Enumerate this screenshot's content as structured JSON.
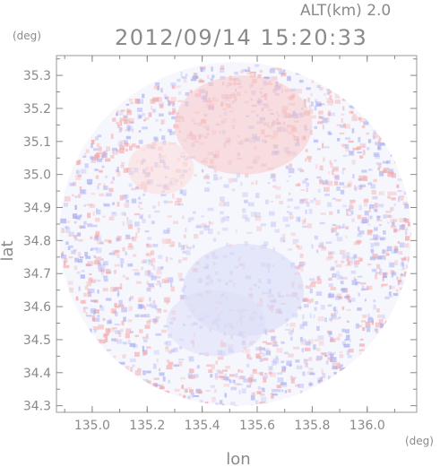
{
  "header": {
    "altitude": "ALT(km) 2.0",
    "timestamp": "2012/09/14 15:20:33"
  },
  "chart_data": {
    "type": "heatmap",
    "title": "2012/09/14 15:20:33",
    "xlabel": "lon",
    "ylabel": "lat",
    "x_unit": "(deg)",
    "y_unit": "(deg)",
    "xlim": [
      134.87,
      136.18
    ],
    "ylim": [
      34.28,
      35.36
    ],
    "x_ticks": [
      135.0,
      135.2,
      135.4,
      135.6,
      135.8,
      136.0
    ],
    "y_ticks": [
      34.3,
      34.4,
      34.5,
      34.6,
      34.7,
      34.8,
      34.9,
      35.0,
      35.1,
      35.2,
      35.3
    ],
    "x_tick_labels": [
      "135.0",
      "135.2",
      "135.4",
      "135.6",
      "135.8",
      "136.0"
    ],
    "y_tick_labels": [
      "34.3",
      "34.4",
      "34.5",
      "34.6",
      "34.7",
      "34.8",
      "34.9",
      "35.0",
      "35.1",
      "35.2",
      "35.3"
    ],
    "domain": {
      "shape": "circle",
      "center_lon": 135.52,
      "center_lat": 34.82,
      "radius_lon": 0.64,
      "radius_lat": 0.52
    },
    "regions": [
      {
        "name": "positive",
        "color": "#f8c8c8",
        "center_lon": 135.55,
        "center_lat": 35.15,
        "radius_lon": 0.25,
        "radius_lat": 0.15
      },
      {
        "name": "positive",
        "color": "#fbdada",
        "center_lon": 135.25,
        "center_lat": 35.02,
        "radius_lon": 0.12,
        "radius_lat": 0.08
      },
      {
        "name": "negative",
        "color": "#d6d8f6",
        "center_lon": 135.55,
        "center_lat": 34.65,
        "radius_lon": 0.22,
        "radius_lat": 0.14
      },
      {
        "name": "negative",
        "color": "#dcdef8",
        "center_lon": 135.45,
        "center_lat": 34.55,
        "radius_lon": 0.18,
        "radius_lat": 0.1
      }
    ],
    "colors": {
      "positive": "#f4a8a8",
      "negative": "#a8aef0",
      "neutral": "#f6f6fd",
      "frame": "#9a9a9a"
    },
    "grid": false
  }
}
